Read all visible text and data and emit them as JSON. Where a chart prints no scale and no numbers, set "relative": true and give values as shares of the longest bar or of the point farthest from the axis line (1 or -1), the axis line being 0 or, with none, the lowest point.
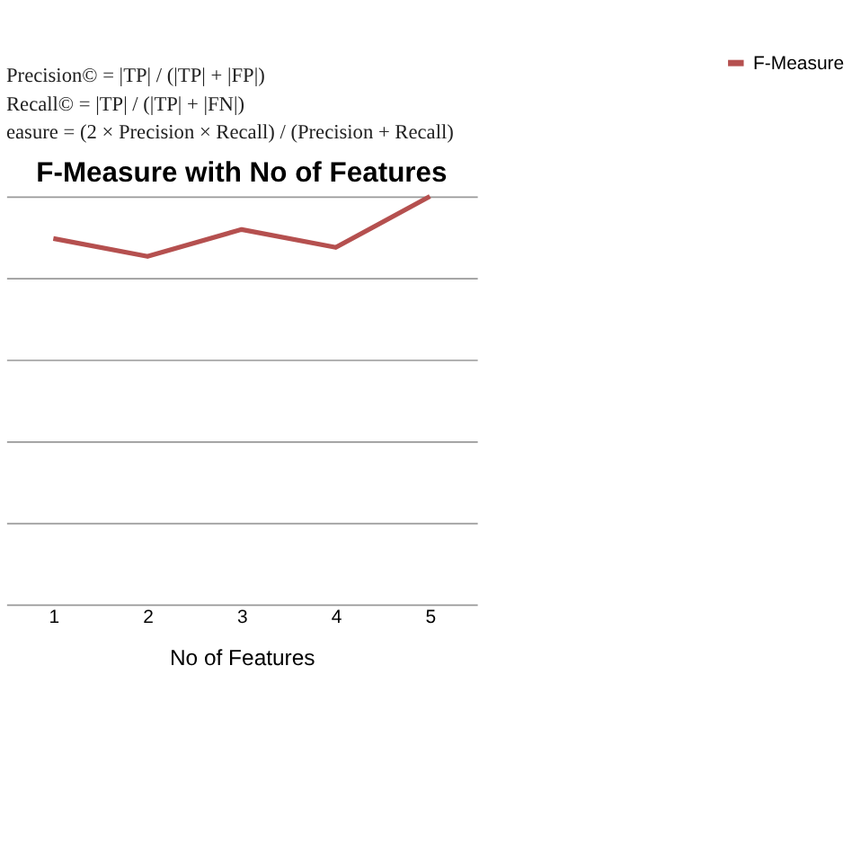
{
  "chart_data": {
    "type": "line",
    "title": "F-Measure with No of Features",
    "xlabel": "No of Features",
    "annotations": [
      "Precision© = |TP| / (|TP| + |FP|)",
      "Recall© = |TP| / (|TP| + |FN|)",
      "easure = (2 × Precision × Recall) / (Precision + Recall)"
    ],
    "categories": [
      "1",
      "2",
      "3",
      "4",
      "5"
    ],
    "series": [
      {
        "name": "F-Measure",
        "color": "#b5504f",
        "values": [
          0.897,
          0.853,
          0.919,
          0.875,
          1
        ]
      }
    ],
    "relative": true,
    "grid": "y",
    "legend": "right",
    "marker": "none",
    "line_style": "solid"
  }
}
